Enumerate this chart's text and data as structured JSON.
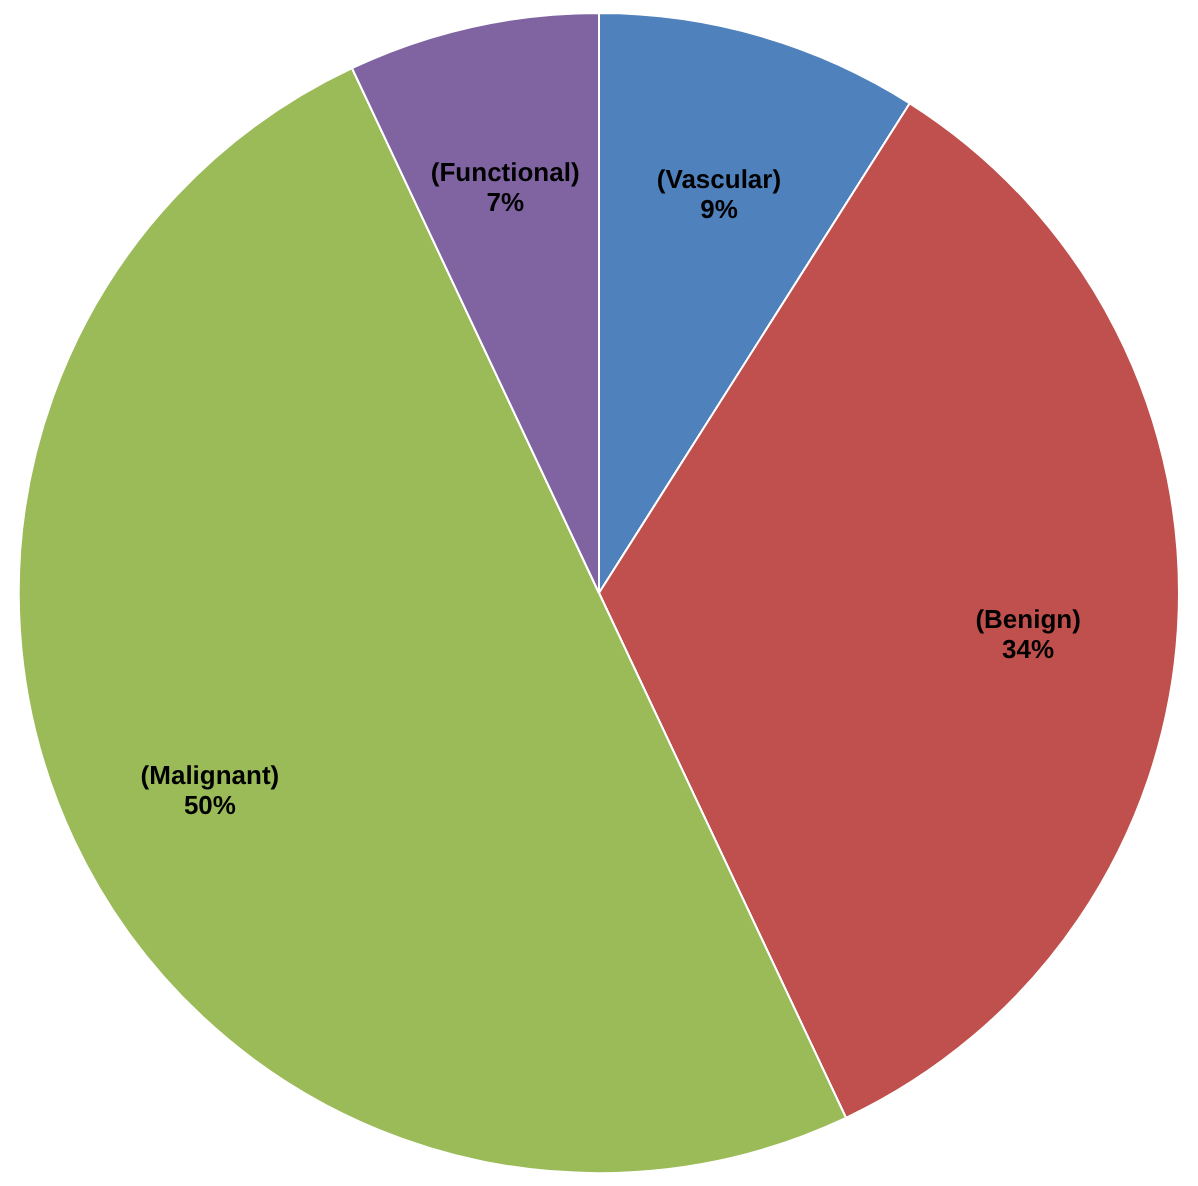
{
  "chart_data": {
    "type": "pie",
    "categories": [
      "(Vascular)",
      "(Benign)",
      "(Malignant)",
      "(Functional)"
    ],
    "values": [
      9,
      34,
      50,
      7
    ],
    "value_labels": [
      "9%",
      "34%",
      "50%",
      "7%"
    ],
    "colors": [
      "#4f81bd",
      "#c0504d",
      "#9bbb59",
      "#8064a2"
    ]
  }
}
